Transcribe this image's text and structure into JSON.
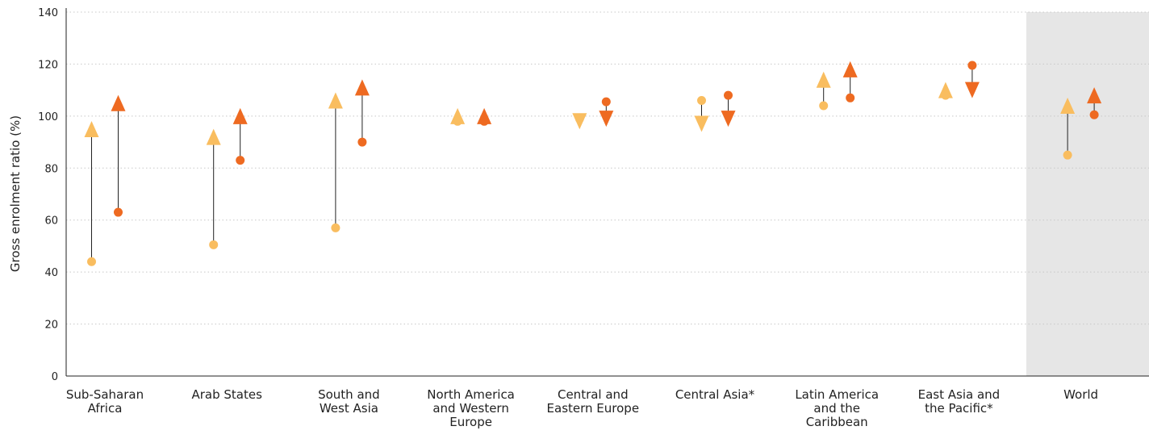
{
  "chart_data": {
    "type": "dot-range",
    "title": "",
    "xlabel": "",
    "ylabel": "Gross enrolment ratio (%)",
    "ylim": [
      0,
      140
    ],
    "yticks": [
      0,
      20,
      40,
      60,
      80,
      100,
      120,
      140
    ],
    "grid": true,
    "highlight_category": "World",
    "categories": [
      [
        "Sub-Saharan",
        "Africa"
      ],
      [
        "Arab States"
      ],
      [
        "South and",
        "West Asia"
      ],
      [
        "North America",
        "and Western",
        "Europe"
      ],
      [
        "Central and",
        "Eastern Europe"
      ],
      [
        "Central Asia*"
      ],
      [
        "Latin America",
        "and the",
        "Caribbean"
      ],
      [
        "East Asia and",
        "the Pacific*"
      ],
      [
        "World"
      ]
    ],
    "series": [
      {
        "color": "#F9BD5F",
        "start": [
          44,
          50.5,
          57,
          98,
          99,
          106,
          104,
          108,
          85
        ],
        "end": [
          95,
          92,
          106,
          100,
          98,
          97,
          114,
          110,
          104
        ],
        "direction": [
          "up",
          "up",
          "up",
          "up",
          "down",
          "down",
          "up",
          "up",
          "up"
        ]
      },
      {
        "color": "#EE6A21",
        "start": [
          63,
          83,
          90,
          98,
          105.5,
          108,
          107,
          119.5,
          100.5
        ],
        "end": [
          105,
          100,
          111,
          100,
          99,
          99,
          118,
          110,
          108
        ],
        "direction": [
          "up",
          "up",
          "up",
          "up",
          "down",
          "down",
          "up",
          "down",
          "up"
        ]
      }
    ]
  }
}
